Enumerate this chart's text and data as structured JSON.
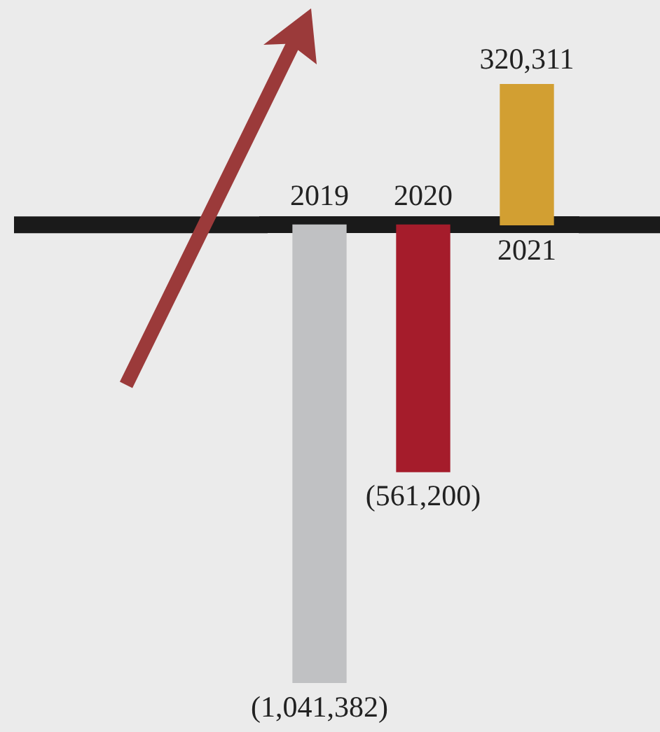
{
  "chart_data": {
    "type": "bar",
    "categories": [
      "2019",
      "2020",
      "2021"
    ],
    "values": [
      -1041382,
      -561200,
      320311
    ],
    "colors": [
      "#c0c1c3",
      "#a51c2b",
      "#d29f32"
    ],
    "value_labels": [
      "(1,041,382)",
      "(561,200)",
      "320,311"
    ],
    "grid": false,
    "legend": false
  }
}
